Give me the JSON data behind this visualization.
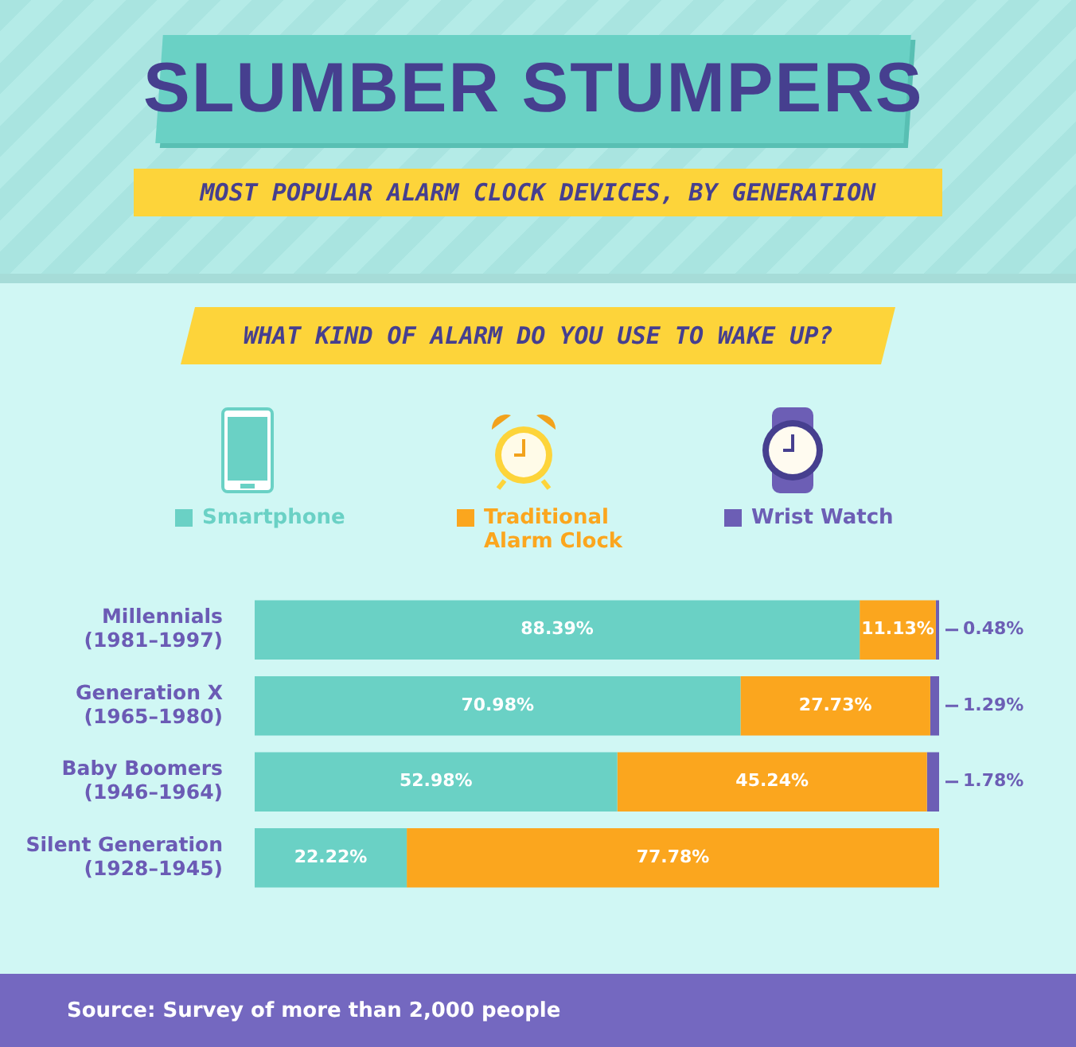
{
  "chart_data": {
    "type": "bar",
    "orientation": "horizontal",
    "stacked": true,
    "title": "SLUMBER STUMPERS",
    "subtitle": "MOST POPULAR ALARM CLOCK DEVICES, BY GENERATION",
    "annotations": [
      "WHAT KIND OF ALARM DO YOU USE TO WAKE UP?",
      "Source: Survey of more than 2,000 people"
    ],
    "categories": [
      "Millennials\n(1981–1997)",
      "Generation X\n(1965–1980)",
      "Baby Boomers\n(1946–1964)",
      "Silent Generation\n(1928–1945)"
    ],
    "series": [
      {
        "name": "Smartphone",
        "color": "#6ad1c5",
        "values": [
          88.39,
          70.98,
          52.98,
          22.22
        ],
        "value_labels": [
          "88.39%",
          "70.98%",
          "52.98%",
          "22.22%"
        ]
      },
      {
        "name": "Traditional\nAlarm Clock",
        "color": "#fba61e",
        "values": [
          11.13,
          27.73,
          45.24,
          77.78
        ],
        "value_labels": [
          "11.13%",
          "27.73%",
          "45.24%",
          "77.78%"
        ]
      },
      {
        "name": "Wrist Watch",
        "color": "#6c5eb5",
        "values": [
          0.48,
          1.29,
          1.78,
          null
        ],
        "value_labels": [
          "0.48%",
          "1.29%",
          "1.78%",
          null
        ]
      }
    ],
    "xlim": [
      0,
      100
    ],
    "tick_labels": "y",
    "legend": "top"
  }
}
